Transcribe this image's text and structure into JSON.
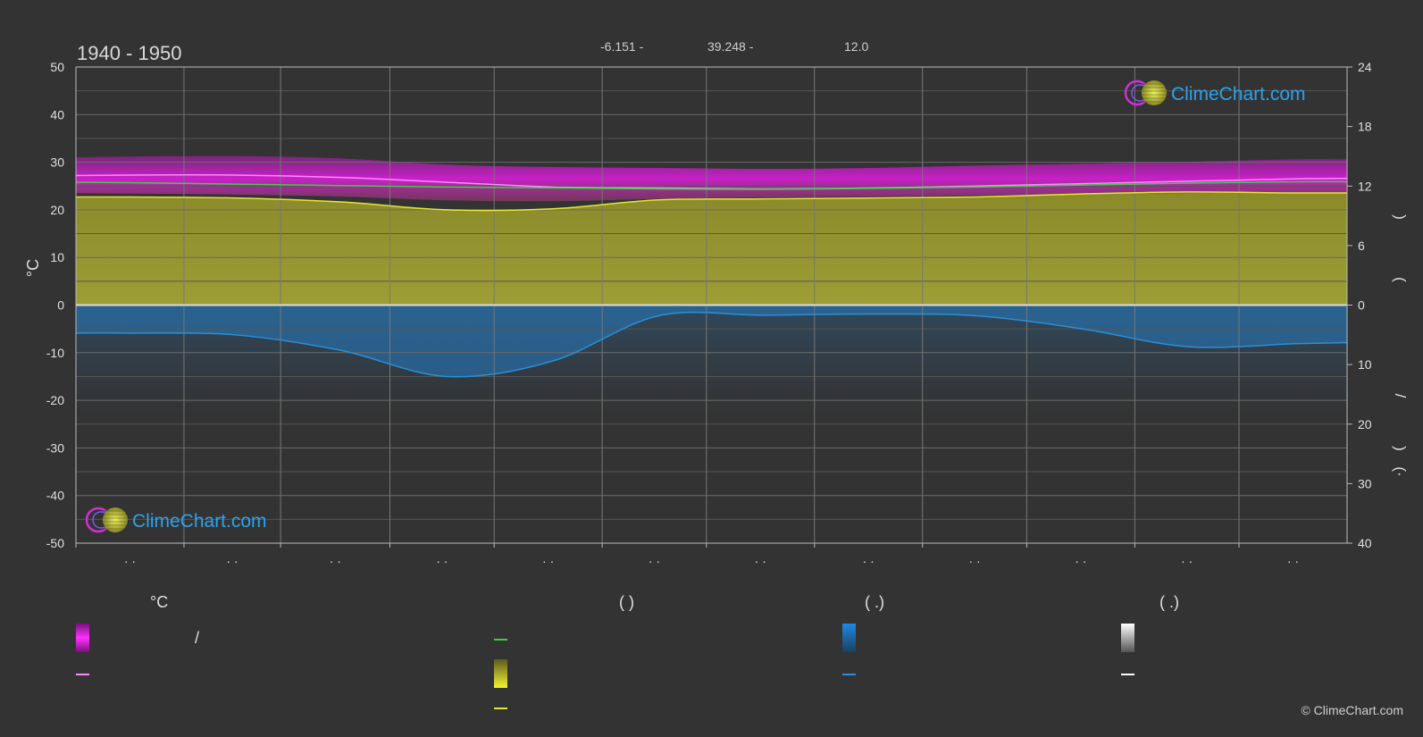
{
  "header": {
    "period": "1940 - 1950",
    "longitude": "-6.151 -",
    "latitude": "39.248 -",
    "value": "12.0"
  },
  "logo": {
    "text": "ClimeChart.com"
  },
  "copyright": "© ClimeChart.com",
  "axes": {
    "left_label": "°C",
    "right_top_fragment_1": ")",
    "right_top_fragment_2": "(",
    "right_bottom_fragment_1": "/",
    "right_bottom_fragment_2": ")",
    "right_bottom_fragment_3": "(·",
    "x_tick_placeholder": "· ·"
  },
  "legend": {
    "col1_head": "°C",
    "col1_row1_text": "/",
    "col2_head": "(          )",
    "col3_head": "(   .)",
    "col4_head": "(   .)"
  },
  "colors": {
    "background": "#333333",
    "magenta": "#e020e0",
    "pink_line": "#ff88ff",
    "green_line": "#44cc44",
    "yellow": "#e6e630",
    "olive_fill": "#9a9a32",
    "blue": "#2a8fd8",
    "grid": "#6a6a6a",
    "logo_blue": "#2aa3f0"
  },
  "chart_data": {
    "type": "area",
    "title": "1940 - 1950",
    "left_axis": {
      "label": "°C",
      "ylim": [
        -50,
        50
      ],
      "ticks": [
        50,
        40,
        30,
        20,
        10,
        0,
        -10,
        -20,
        -30,
        -40,
        -50
      ]
    },
    "right_axis_upper": {
      "ylim": [
        0,
        24
      ],
      "ticks": [
        24,
        18,
        12,
        6,
        0
      ]
    },
    "right_axis_lower": {
      "ylim": [
        0,
        40
      ],
      "ticks": [
        0,
        10,
        20,
        30,
        40
      ]
    },
    "months": 12,
    "x_positions_fraction": [
      0.0,
      0.0417,
      0.125,
      0.2083,
      0.2917,
      0.375,
      0.4583,
      0.5417,
      0.625,
      0.7083,
      0.7917,
      0.875,
      0.9583,
      1.0
    ],
    "series": [
      {
        "role": "daily_max_temp_line",
        "color": "#ff88ff",
        "values": [
          27.2,
          27.3,
          27.3,
          26.8,
          25.8,
          24.8,
          24.6,
          24.4,
          24.6,
          25.0,
          25.5,
          26.0,
          26.5,
          26.6
        ]
      },
      {
        "role": "mean_temp_line",
        "color": "#44cc44",
        "values": [
          25.8,
          25.7,
          25.4,
          25.1,
          24.8,
          24.6,
          24.4,
          24.3,
          24.5,
          24.8,
          25.2,
          25.6,
          25.9,
          25.9
        ]
      },
      {
        "role": "sunshine_hours_line",
        "color": "#e6e630",
        "axis": "right_upper",
        "values": [
          10.9,
          10.9,
          10.8,
          10.4,
          9.6,
          9.7,
          10.6,
          10.7,
          10.8,
          10.9,
          11.2,
          11.4,
          11.3,
          11.3
        ]
      },
      {
        "role": "precipitation_line",
        "color": "#2a8fd8",
        "axis": "right_lower",
        "values": [
          4.7,
          4.7,
          5.0,
          7.6,
          12.0,
          9.4,
          1.8,
          1.7,
          1.5,
          1.8,
          4.0,
          7.0,
          6.5,
          6.3
        ]
      },
      {
        "role": "temp_range_band",
        "color": "#e020e0",
        "upper": [
          31.0,
          31.2,
          31.3,
          30.8,
          29.5,
          29.0,
          28.8,
          28.6,
          28.8,
          29.3,
          29.7,
          30.1,
          30.6,
          30.6
        ],
        "lower": [
          23.5,
          23.4,
          23.2,
          22.8,
          22.0,
          21.8,
          22.3,
          22.6,
          22.8,
          23.0,
          23.3,
          23.5,
          23.6,
          23.6
        ]
      }
    ]
  }
}
